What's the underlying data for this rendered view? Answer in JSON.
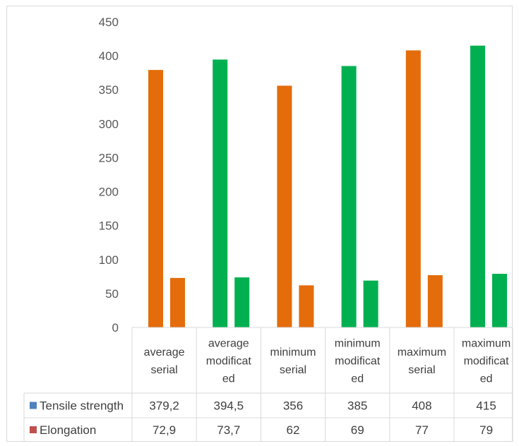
{
  "colors": {
    "bar_orange": "#e46c0a",
    "bar_green": "#00b050",
    "legend_blue": "#4f81bd",
    "legend_red": "#c0504d",
    "axis_line": "#d9d9d9",
    "tick_text": "#595959"
  },
  "chart_data": {
    "type": "bar",
    "ylim": [
      0,
      450
    ],
    "yticks": [
      0,
      50,
      100,
      150,
      200,
      250,
      300,
      350,
      400,
      450
    ],
    "grid": false,
    "legend": "data-table",
    "categories": [
      {
        "lines": [
          "average",
          "serial"
        ],
        "bar_color": "#e46c0a"
      },
      {
        "lines": [
          "average",
          "modificat",
          "ed"
        ],
        "bar_color": "#00b050"
      },
      {
        "lines": [
          "minimum",
          "serial"
        ],
        "bar_color": "#e46c0a"
      },
      {
        "lines": [
          "minimum",
          "modificat",
          "ed"
        ],
        "bar_color": "#00b050"
      },
      {
        "lines": [
          "maximum",
          "serial"
        ],
        "bar_color": "#e46c0a"
      },
      {
        "lines": [
          "maximum",
          "modificat",
          "ed"
        ],
        "bar_color": "#00b050"
      }
    ],
    "series": [
      {
        "name": "Tensile strength",
        "legend_color": "#4f81bd",
        "values": [
          379.2,
          394.5,
          356,
          385,
          408,
          415
        ],
        "labels": [
          "379,2",
          "394,5",
          "356",
          "385",
          "408",
          "415"
        ]
      },
      {
        "name": "Elongation",
        "legend_color": "#c0504d",
        "values": [
          72.9,
          73.7,
          62,
          69,
          77,
          79
        ],
        "labels": [
          "72,9",
          "73,7",
          "62",
          "69",
          "77",
          "79"
        ]
      }
    ]
  }
}
